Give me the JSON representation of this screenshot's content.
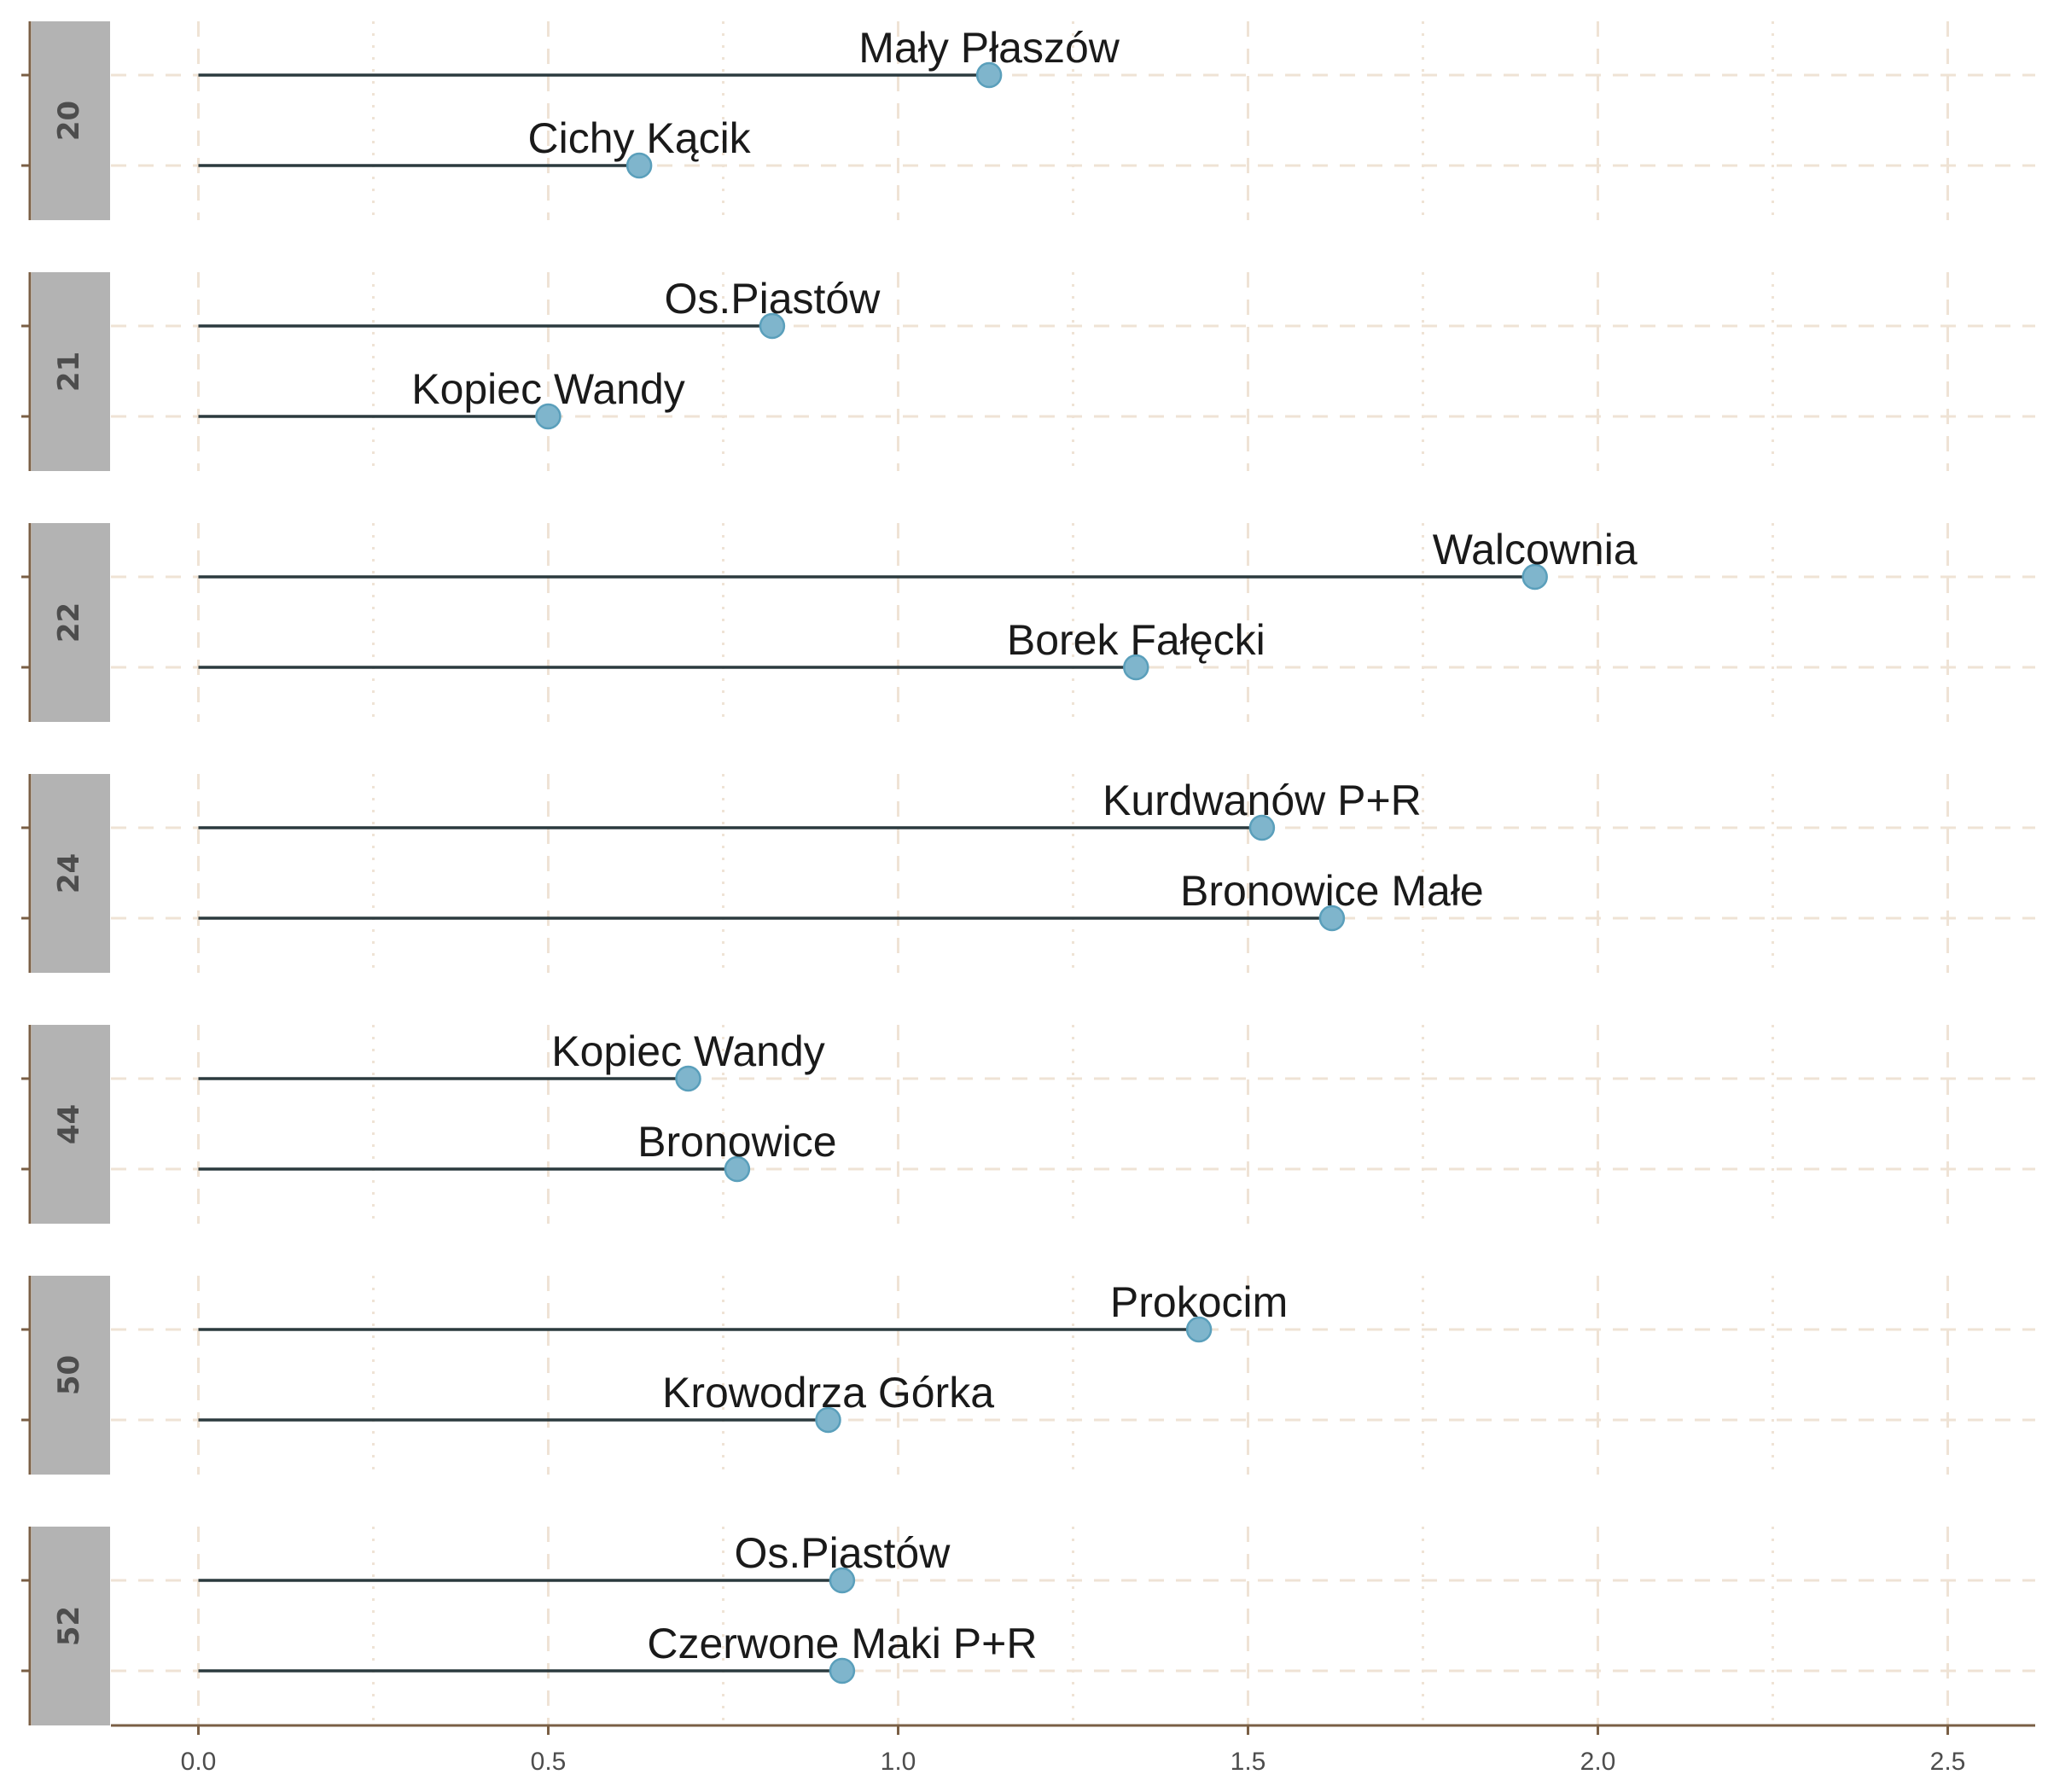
{
  "chart_data": {
    "type": "lollipop",
    "orientation": "horizontal",
    "facet_by": "line",
    "xlim": [
      -0.125,
      2.625
    ],
    "x_ticks": [
      0.0,
      0.5,
      1.0,
      1.5,
      2.0,
      2.5
    ],
    "x_tick_labels": [
      "0.0",
      "0.5",
      "1.0",
      "1.5",
      "2.0",
      "2.5"
    ],
    "xlabel": "",
    "ylabel": "",
    "grid": true,
    "colors": {
      "point": "#7fb5cc",
      "point_stroke": "#5a9fbb",
      "segment": "#2b3a3e",
      "grid": "#efe3d5",
      "axis": "#7a5f45",
      "strip": "#b3b3b3"
    },
    "facets": [
      {
        "label": "20",
        "items": [
          {
            "name": "Mały Płaszów",
            "value": 1.13
          },
          {
            "name": "Cichy Kącik",
            "value": 0.63
          }
        ]
      },
      {
        "label": "21",
        "items": [
          {
            "name": "Os.Piastów",
            "value": 0.82
          },
          {
            "name": "Kopiec Wandy",
            "value": 0.5
          }
        ]
      },
      {
        "label": "22",
        "items": [
          {
            "name": "Walcownia",
            "value": 1.91
          },
          {
            "name": "Borek Fałęcki",
            "value": 1.34
          }
        ]
      },
      {
        "label": "24",
        "items": [
          {
            "name": "Kurdwanów P+R",
            "value": 1.52
          },
          {
            "name": "Bronowice Małe",
            "value": 1.62
          }
        ]
      },
      {
        "label": "44",
        "items": [
          {
            "name": "Kopiec Wandy",
            "value": 0.7
          },
          {
            "name": "Bronowice",
            "value": 0.77
          }
        ]
      },
      {
        "label": "50",
        "items": [
          {
            "name": "Prokocim",
            "value": 1.43
          },
          {
            "name": "Krowodrza Górka",
            "value": 0.9
          }
        ]
      },
      {
        "label": "52",
        "items": [
          {
            "name": "Os.Piastów",
            "value": 0.92
          },
          {
            "name": "Czerwone Maki P+R",
            "value": 0.92
          }
        ]
      }
    ]
  }
}
